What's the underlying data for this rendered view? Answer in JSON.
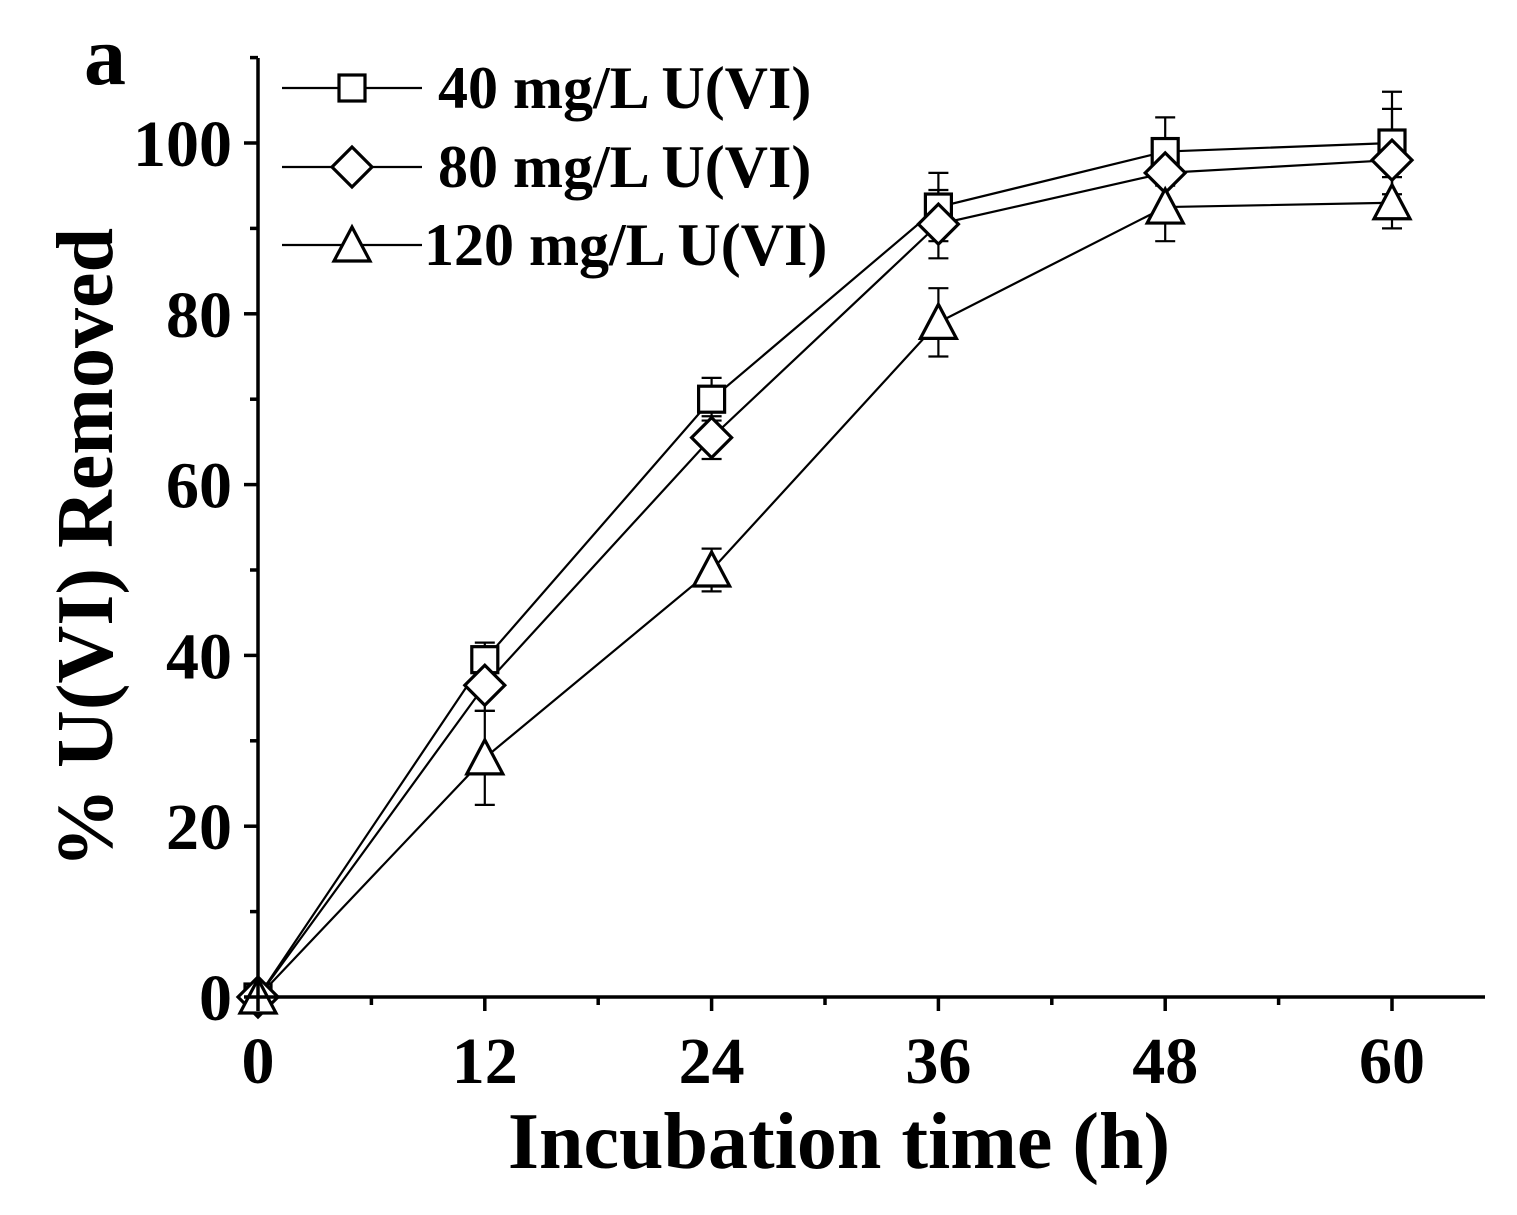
{
  "chart_data": {
    "type": "line",
    "panel_label": "a",
    "xlabel": "Incubation time (h)",
    "ylabel": "% U(VI) Removed",
    "xlim": [
      0,
      65
    ],
    "ylim": [
      0,
      110
    ],
    "x_ticks": [
      0,
      12,
      24,
      36,
      48,
      60
    ],
    "y_ticks": [
      0,
      20,
      40,
      60,
      80,
      100
    ],
    "legend_position": "top-left",
    "grid": false,
    "x": [
      0,
      12,
      24,
      36,
      48,
      60
    ],
    "series": [
      {
        "name": "40 mg/L U(VI)",
        "marker": "square",
        "values": [
          0,
          39.5,
          70,
          92.5,
          99,
          100
        ],
        "errors": [
          0,
          2,
          2.5,
          4,
          4,
          6
        ]
      },
      {
        "name": "80 mg/L U(VI)",
        "marker": "diamond",
        "values": [
          0,
          36.5,
          65.5,
          90.5,
          96.5,
          98
        ],
        "errors": [
          0,
          3,
          2.5,
          4,
          4,
          6
        ]
      },
      {
        "name": "120 mg/L U(VI)",
        "marker": "triangle",
        "values": [
          0,
          28,
          50,
          79,
          92.5,
          93
        ],
        "errors": [
          0,
          5.5,
          2.5,
          4,
          4,
          3
        ]
      }
    ]
  }
}
